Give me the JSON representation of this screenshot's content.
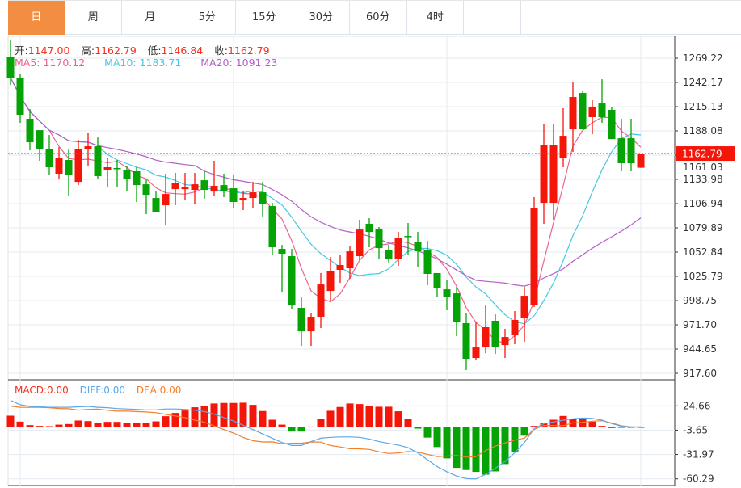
{
  "tabs": [
    "日",
    "周",
    "月",
    "5分",
    "15分",
    "30分",
    "60分",
    "4时"
  ],
  "active_tab": "日",
  "ohlc_info": {
    "open_label": "开:",
    "open": "1147.00",
    "high_label": "高:",
    "high": "1162.79",
    "low_label": "低:",
    "low": "1146.84",
    "close_label": "收:",
    "close": "1162.79"
  },
  "ma_info": {
    "ma5": "MA5: 1170.12",
    "ma10": "MA10: 1183.71",
    "ma20": "MA20: 1091.23"
  },
  "macd_info": {
    "macd": "MACD:0.00",
    "diff": "DIFF:0.00",
    "dea": "DEA:0.00"
  },
  "current_price": "1162.79",
  "colors": {
    "up": "#f5160a",
    "down": "#06a306",
    "ma5": "#f0628c",
    "ma10": "#46c8e0",
    "ma20": "#b55ec6",
    "diff": "#5aa8e8",
    "dea": "#f77e26",
    "accent": "#f28d42"
  },
  "chart_data": [
    {
      "type": "candlestick",
      "ylim": [
        917.6,
        1269.22
      ],
      "y_ticks": [
        "1269.22",
        "1242.17",
        "1215.13",
        "1188.08",
        "1161.03",
        "1133.98",
        "1106.94",
        "1079.89",
        "1052.84",
        "1025.79",
        "998.75",
        "971.70",
        "944.65",
        "917.60"
      ],
      "grid": true,
      "ohlc": [
        [
          1271.0,
          1289.0,
          1239.4,
          1247.5
        ],
        [
          1247.5,
          1252.1,
          1197.1,
          1206.1
        ],
        [
          1201.6,
          1212.4,
          1166.4,
          1175.4
        ],
        [
          1188.9,
          1188.9,
          1154.7,
          1167.3
        ],
        [
          1168.2,
          1183.5,
          1138.5,
          1147.5
        ],
        [
          1140.3,
          1170.0,
          1133.9,
          1157.4
        ],
        [
          1155.6,
          1167.3,
          1115.9,
          1138.5
        ],
        [
          1131.2,
          1178.1,
          1127.6,
          1168.2
        ],
        [
          1168.2,
          1186.2,
          1148.4,
          1170.9
        ],
        [
          1170.9,
          1180.8,
          1134.0,
          1137.6
        ],
        [
          1143.9,
          1158.3,
          1124.9,
          1147.5
        ],
        [
          1146.6,
          1155.6,
          1125.8,
          1145.7
        ],
        [
          1143.9,
          1149.3,
          1121.3,
          1134.8
        ],
        [
          1143.0,
          1147.5,
          1108.7,
          1127.6
        ],
        [
          1128.5,
          1133.9,
          1095.2,
          1116.8
        ],
        [
          1113.2,
          1120.4,
          1097.0,
          1097.9
        ],
        [
          1105.1,
          1140.3,
          1083.5,
          1117.7
        ],
        [
          1123.1,
          1141.2,
          1105.1,
          1130.3
        ],
        [
          1123.1,
          1141.2,
          1110.5,
          1124.9
        ],
        [
          1122.2,
          1141.2,
          1106.0,
          1128.5
        ],
        [
          1133.0,
          1143.0,
          1112.3,
          1122.2
        ],
        [
          1120.4,
          1154.7,
          1115.9,
          1126.7
        ],
        [
          1127.6,
          1140.3,
          1114.1,
          1120.4
        ],
        [
          1124.0,
          1139.4,
          1101.5,
          1108.7
        ],
        [
          1110.5,
          1121.3,
          1099.7,
          1113.2
        ],
        [
          1113.2,
          1131.2,
          1102.4,
          1119.5
        ],
        [
          1119.5,
          1131.2,
          1092.5,
          1106.0
        ],
        [
          1104.2,
          1107.8,
          1050.1,
          1058.2
        ],
        [
          1056.4,
          1060.9,
          1007.7,
          1051.0
        ],
        [
          1048.3,
          1056.4,
          988.8,
          993.3
        ],
        [
          990.6,
          1002.3,
          948.2,
          964.4
        ],
        [
          964.4,
          985.2,
          948.2,
          980.7
        ],
        [
          980.7,
          1029.4,
          968.1,
          1016.7
        ],
        [
          1009.5,
          1047.4,
          998.7,
          1031.2
        ],
        [
          1033.0,
          1049.2,
          1018.5,
          1038.4
        ],
        [
          1034.8,
          1060.0,
          1023.0,
          1053.7
        ],
        [
          1048.3,
          1088.9,
          1043.8,
          1078.0
        ],
        [
          1084.4,
          1090.7,
          1058.2,
          1075.3
        ],
        [
          1078.9,
          1080.8,
          1044.7,
          1057.3
        ],
        [
          1055.5,
          1060.9,
          1040.2,
          1045.6
        ],
        [
          1045.6,
          1075.3,
          1037.5,
          1069.0
        ],
        [
          1070.8,
          1085.3,
          1049.2,
          1069.9
        ],
        [
          1064.5,
          1075.3,
          1036.6,
          1053.7
        ],
        [
          1055.5,
          1065.4,
          1015.8,
          1028.5
        ],
        [
          1029.4,
          1029.4,
          1003.2,
          1013.1
        ],
        [
          1011.3,
          1022.1,
          987.9,
          1003.2
        ],
        [
          1006.8,
          1014.0,
          959.0,
          975.3
        ],
        [
          973.5,
          984.3,
          921.2,
          933.8
        ],
        [
          934.7,
          974.4,
          932.0,
          946.4
        ],
        [
          946.4,
          993.3,
          940.1,
          969.0
        ],
        [
          976.2,
          983.4,
          939.2,
          947.3
        ],
        [
          949.1,
          967.2,
          934.7,
          958.1
        ],
        [
          959.9,
          987.0,
          950.0,
          977.1
        ],
        [
          978.9,
          1014.0,
          952.7,
          1004.1
        ],
        [
          994.2,
          1114.1,
          991.5,
          1102.4
        ],
        [
          1107.8,
          1196.2,
          1084.4,
          1172.7
        ],
        [
          1107.8,
          1196.2,
          1088.9,
          1172.7
        ],
        [
          1157.4,
          1213.3,
          1147.5,
          1182.6
        ],
        [
          1189.8,
          1242.1,
          1164.6,
          1225.9
        ],
        [
          1230.4,
          1232.2,
          1189.8,
          1189.8
        ],
        [
          1203.4,
          1222.3,
          1184.4,
          1215.1
        ],
        [
          1218.7,
          1245.7,
          1197.1,
          1203.4
        ],
        [
          1211.5,
          1215.1,
          1179.0,
          1179.0
        ],
        [
          1179.9,
          1201.6,
          1143.0,
          1152.0
        ],
        [
          1179.9,
          1201.6,
          1143.0,
          1152.0
        ],
        [
          1147.0,
          1162.79,
          1146.84,
          1162.79
        ]
      ],
      "moving_averages": [
        5,
        10,
        20
      ]
    },
    {
      "type": "bar+line",
      "ylim": [
        -60.29,
        24.66
      ],
      "y_ticks": [
        "24.66",
        "-3.65",
        "-31.97",
        "-60.29"
      ],
      "macd_hist": [
        13.2,
        6.3,
        2.2,
        1.3,
        1,
        2.8,
        3.5,
        7.6,
        6.9,
        4.4,
        6.0,
        6.0,
        5.0,
        5.0,
        5.0,
        6.6,
        12.6,
        16.4,
        19.2,
        23,
        24.9,
        27.4,
        28,
        28,
        28.3,
        25.8,
        18.6,
        8.5,
        2.8,
        -5.3,
        -5.3,
        0.6,
        9.1,
        18.9,
        23.3,
        27.4,
        26.7,
        24.2,
        23.6,
        23.6,
        18.3,
        9.1,
        -1.9,
        -12.3,
        -23.3,
        -36.5,
        -47.5,
        -50,
        -52.2,
        -55.4,
        -51.6,
        -43.1,
        -29.6,
        -10.1,
        1.3,
        4.4,
        8.5,
        12.9,
        9.4,
        10.1,
        6.3,
        1.3,
        -1.3,
        -0.9,
        -0.3,
        0
      ],
      "diff": [
        31,
        26,
        24,
        23.5,
        23,
        23,
        23,
        23.5,
        24,
        23,
        22.5,
        21.5,
        21,
        20.5,
        20,
        20,
        21,
        21,
        20.5,
        19.5,
        18,
        15,
        11,
        7,
        2,
        -3,
        -8,
        -13,
        -18,
        -21.5,
        -21.5,
        -17,
        -13,
        -12,
        -11.5,
        -11.5,
        -12,
        -14,
        -17,
        -19,
        -21,
        -24,
        -30,
        -38,
        -46,
        -52,
        -57,
        -60,
        -60.5,
        -55,
        -48,
        -40,
        -30,
        -18,
        -2,
        4,
        6,
        8,
        9.5,
        10.5,
        10,
        8,
        4,
        1,
        0,
        0
      ]
    }
  ]
}
